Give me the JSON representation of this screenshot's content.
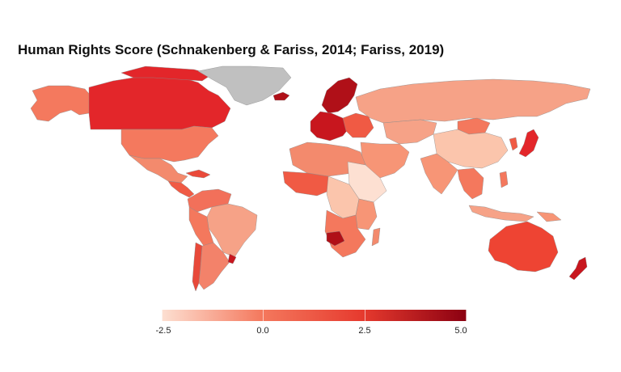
{
  "title": "Human Rights Score (Schnakenberg & Fariss, 2014; Fariss, 2019)",
  "legend": {
    "ticks": [
      "-2.5",
      "0.0",
      "2.5",
      "5.0"
    ],
    "range": [
      -2.5,
      5.0
    ],
    "colors": [
      "#fde0d2",
      "#f4785d",
      "#e63a2e",
      "#8b0011"
    ]
  },
  "colors": {
    "no_data": "#c0c0c0",
    "border": "#8a8a8a"
  }
}
